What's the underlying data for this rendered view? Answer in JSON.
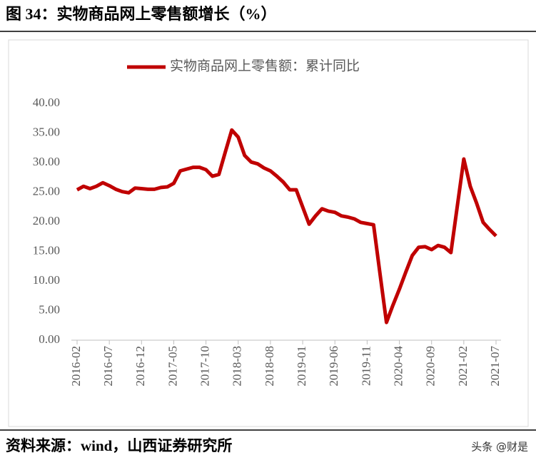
{
  "title": "图 34：实物商品网上零售额增长（%）",
  "chart_data": {
    "type": "line",
    "categories": [
      "2016-02",
      null,
      null,
      null,
      null,
      "2016-07",
      null,
      null,
      null,
      null,
      "2016-12",
      null,
      null,
      null,
      null,
      "2017-05",
      null,
      null,
      null,
      null,
      "2017-10",
      null,
      null,
      null,
      null,
      "2018-03",
      null,
      null,
      null,
      null,
      "2018-08",
      null,
      null,
      null,
      null,
      "2019-01",
      null,
      null,
      null,
      null,
      "2019-06",
      null,
      null,
      null,
      null,
      "2019-11",
      null,
      null,
      null,
      null,
      "2020-04",
      null,
      null,
      null,
      null,
      "2020-09",
      null,
      null,
      null,
      null,
      "2021-02",
      null,
      null,
      null,
      null,
      "2021-07"
    ],
    "series": [
      {
        "name": "实物商品网上零售额：累计同比",
        "color": "#c00000",
        "values": [
          25.4,
          26.0,
          25.6,
          26.0,
          26.6,
          26.1,
          25.5,
          25.1,
          24.9,
          25.7,
          25.6,
          25.5,
          25.5,
          25.8,
          25.9,
          26.5,
          28.6,
          28.9,
          29.2,
          29.2,
          28.8,
          27.7,
          28.0,
          31.8,
          35.5,
          34.3,
          31.2,
          30.1,
          29.8,
          29.1,
          28.6,
          27.7,
          26.7,
          25.4,
          25.4,
          22.5,
          19.6,
          21.0,
          22.2,
          21.8,
          21.6,
          21.0,
          20.8,
          20.5,
          19.9,
          19.7,
          19.5,
          11.2,
          3.0,
          5.9,
          8.6,
          11.5,
          14.3,
          15.7,
          15.8,
          15.3,
          16.0,
          15.7,
          14.8,
          22.7,
          30.6,
          26.0,
          23.1,
          19.9,
          18.7,
          17.6
        ]
      }
    ],
    "ylim": [
      0,
      40
    ],
    "yticks": [
      {
        "value": 0,
        "label": "0.00"
      },
      {
        "value": 5,
        "label": "5.00"
      },
      {
        "value": 10,
        "label": "10.00"
      },
      {
        "value": 15,
        "label": "15.00"
      },
      {
        "value": 20,
        "label": "20.00"
      },
      {
        "value": 25,
        "label": "25.00"
      },
      {
        "value": 30,
        "label": "30.00"
      },
      {
        "value": 35,
        "label": "35.00"
      },
      {
        "value": 40,
        "label": "40.00"
      }
    ],
    "legend": "top"
  },
  "footer": {
    "source": "资料来源：wind，山西证券研究所",
    "watermark": "头条 @财是"
  }
}
